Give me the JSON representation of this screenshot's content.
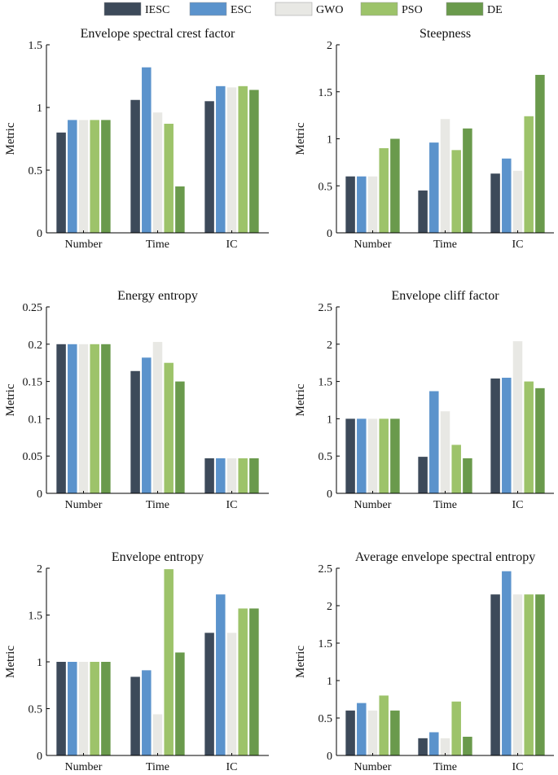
{
  "legend": [
    {
      "name": "IESC",
      "color": "#3d4a5a"
    },
    {
      "name": "ESC",
      "color": "#5b93cc"
    },
    {
      "name": "GWO",
      "color": "#e8e8e4"
    },
    {
      "name": "PSO",
      "color": "#9dc36a"
    },
    {
      "name": "DE",
      "color": "#6a9a4c"
    }
  ],
  "chart_data": [
    {
      "type": "bar",
      "title": "Envelope spectral crest factor",
      "ylabel": "Metric",
      "categories": [
        "Number",
        "Time",
        "IC"
      ],
      "ylim": [
        0,
        1.5
      ],
      "yticks": [
        "0",
        "0.5",
        "1",
        "1.5"
      ],
      "ytick_values": [
        0,
        0.5,
        1,
        1.5
      ],
      "series": [
        {
          "name": "IESC",
          "values": [
            0.8,
            1.06,
            1.05
          ]
        },
        {
          "name": "ESC",
          "values": [
            0.9,
            1.32,
            1.17
          ]
        },
        {
          "name": "GWO",
          "values": [
            0.9,
            0.96,
            1.16
          ]
        },
        {
          "name": "PSO",
          "values": [
            0.9,
            0.87,
            1.17
          ]
        },
        {
          "name": "DE",
          "values": [
            0.9,
            0.37,
            1.14
          ]
        }
      ]
    },
    {
      "type": "bar",
      "title": "Steepness",
      "ylabel": "Metric",
      "categories": [
        "Number",
        "Time",
        "IC"
      ],
      "ylim": [
        0,
        2
      ],
      "yticks": [
        "0",
        "0.5",
        "1",
        "1.5",
        "2"
      ],
      "ytick_values": [
        0,
        0.5,
        1,
        1.5,
        2
      ],
      "series": [
        {
          "name": "IESC",
          "values": [
            0.6,
            0.45,
            0.63
          ]
        },
        {
          "name": "ESC",
          "values": [
            0.6,
            0.96,
            0.79
          ]
        },
        {
          "name": "GWO",
          "values": [
            0.6,
            1.21,
            0.66
          ]
        },
        {
          "name": "PSO",
          "values": [
            0.9,
            0.88,
            1.24
          ]
        },
        {
          "name": "DE",
          "values": [
            1.0,
            1.11,
            1.68
          ]
        }
      ]
    },
    {
      "type": "bar",
      "title": "Energy entropy",
      "ylabel": "Metric",
      "categories": [
        "Number",
        "Time",
        "IC"
      ],
      "ylim": [
        0,
        0.25
      ],
      "yticks": [
        "0",
        "0.05",
        "0.1",
        "0.15",
        "0.2",
        "0.25"
      ],
      "ytick_values": [
        0,
        0.05,
        0.1,
        0.15,
        0.2,
        0.25
      ],
      "series": [
        {
          "name": "IESC",
          "values": [
            0.2,
            0.164,
            0.047
          ]
        },
        {
          "name": "ESC",
          "values": [
            0.2,
            0.182,
            0.047
          ]
        },
        {
          "name": "GWO",
          "values": [
            0.2,
            0.203,
            0.047
          ]
        },
        {
          "name": "PSO",
          "values": [
            0.2,
            0.175,
            0.047
          ]
        },
        {
          "name": "DE",
          "values": [
            0.2,
            0.15,
            0.047
          ]
        }
      ]
    },
    {
      "type": "bar",
      "title": "Envelope cliff factor",
      "ylabel": "Metric",
      "categories": [
        "Number",
        "Time",
        "IC"
      ],
      "ylim": [
        0,
        2.5
      ],
      "yticks": [
        "0",
        "0.5",
        "1",
        "1.5",
        "2",
        "2.5"
      ],
      "ytick_values": [
        0,
        0.5,
        1,
        1.5,
        2,
        2.5
      ],
      "series": [
        {
          "name": "IESC",
          "values": [
            1.0,
            0.49,
            1.54
          ]
        },
        {
          "name": "ESC",
          "values": [
            1.0,
            1.37,
            1.55
          ]
        },
        {
          "name": "GWO",
          "values": [
            1.0,
            1.1,
            2.04
          ]
        },
        {
          "name": "PSO",
          "values": [
            1.0,
            0.65,
            1.5
          ]
        },
        {
          "name": "DE",
          "values": [
            1.0,
            0.47,
            1.41
          ]
        }
      ]
    },
    {
      "type": "bar",
      "title": "Envelope entropy",
      "ylabel": "Metric",
      "categories": [
        "Number",
        "Time",
        "IC"
      ],
      "ylim": [
        0,
        2
      ],
      "yticks": [
        "0",
        "0.5",
        "1",
        "1.5",
        "2"
      ],
      "ytick_values": [
        0,
        0.5,
        1,
        1.5,
        2
      ],
      "series": [
        {
          "name": "IESC",
          "values": [
            1.0,
            0.84,
            1.31
          ]
        },
        {
          "name": "ESC",
          "values": [
            1.0,
            0.91,
            1.72
          ]
        },
        {
          "name": "GWO",
          "values": [
            1.0,
            0.44,
            1.31
          ]
        },
        {
          "name": "PSO",
          "values": [
            1.0,
            1.99,
            1.57
          ]
        },
        {
          "name": "DE",
          "values": [
            1.0,
            1.1,
            1.57
          ]
        }
      ]
    },
    {
      "type": "bar",
      "title": "Average envelope spectral entropy",
      "ylabel": "Metric",
      "categories": [
        "Number",
        "Time",
        "IC"
      ],
      "ylim": [
        0,
        2.5
      ],
      "yticks": [
        "0",
        "0.5",
        "1",
        "1.5",
        "2",
        "2.5"
      ],
      "ytick_values": [
        0,
        0.5,
        1,
        1.5,
        2,
        2.5
      ],
      "series": [
        {
          "name": "IESC",
          "values": [
            0.6,
            0.23,
            2.15
          ]
        },
        {
          "name": "ESC",
          "values": [
            0.7,
            0.31,
            2.46
          ]
        },
        {
          "name": "GWO",
          "values": [
            0.6,
            0.23,
            2.15
          ]
        },
        {
          "name": "PSO",
          "values": [
            0.8,
            0.72,
            2.15
          ]
        },
        {
          "name": "DE",
          "values": [
            0.6,
            0.25,
            2.15
          ]
        }
      ]
    }
  ]
}
